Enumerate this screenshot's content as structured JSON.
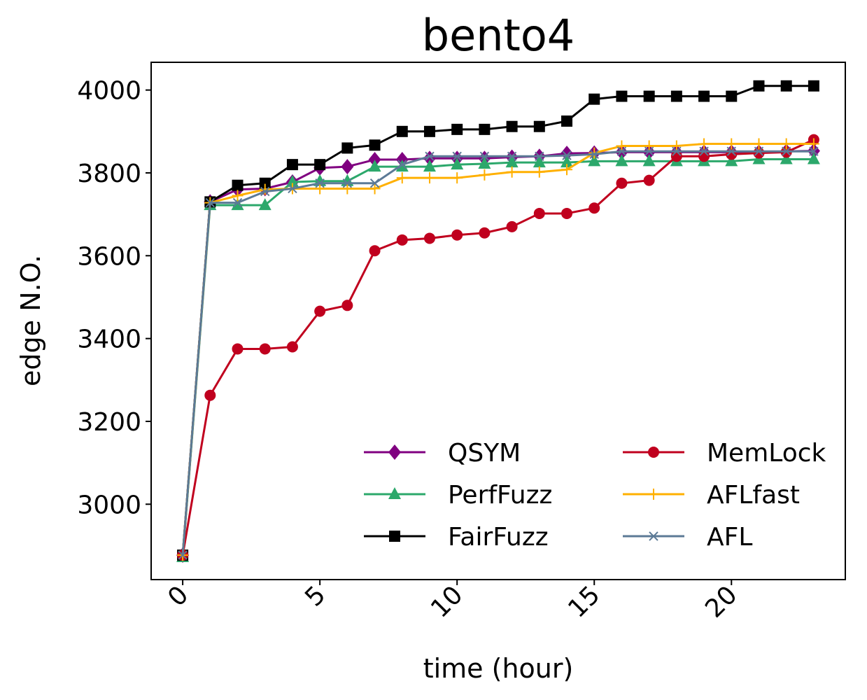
{
  "chart_data": {
    "type": "line",
    "title": "bento4",
    "xlabel": "time (hour)",
    "ylabel": "edge N.O.",
    "xlim": [
      -1.15,
      24.15
    ],
    "ylim": [
      2818,
      4067
    ],
    "xticks": [
      0,
      5,
      10,
      15,
      20
    ],
    "yticks": [
      3000,
      3200,
      3400,
      3600,
      3800,
      4000
    ],
    "grid": false,
    "legend": {
      "position": "lower-right",
      "columns": 2
    },
    "x": [
      0,
      1,
      2,
      3,
      4,
      5,
      6,
      7,
      8,
      9,
      10,
      11,
      12,
      13,
      14,
      15,
      16,
      17,
      18,
      19,
      20,
      21,
      22,
      23
    ],
    "series": [
      {
        "name": "QSYM",
        "color": "#800080",
        "marker": "diamond",
        "values": [
          2877,
          3730,
          3760,
          3762,
          3778,
          3812,
          3815,
          3832,
          3832,
          3835,
          3835,
          3835,
          3838,
          3840,
          3847,
          3848,
          3850,
          3850,
          3850,
          3850,
          3850,
          3850,
          3852,
          3853
        ]
      },
      {
        "name": "PerfFuzz",
        "color": "#2ca86b",
        "marker": "triangle",
        "values": [
          2872,
          3722,
          3722,
          3722,
          3778,
          3780,
          3780,
          3815,
          3815,
          3815,
          3820,
          3822,
          3825,
          3825,
          3825,
          3828,
          3828,
          3828,
          3828,
          3828,
          3828,
          3833,
          3833,
          3833
        ]
      },
      {
        "name": "FairFuzz",
        "color": "#000000",
        "marker": "square",
        "values": [
          2877,
          3730,
          3770,
          3775,
          3820,
          3820,
          3860,
          3867,
          3900,
          3900,
          3905,
          3905,
          3912,
          3912,
          3925,
          3978,
          3985,
          3985,
          3985,
          3985,
          3985,
          4010,
          4010,
          4010
        ]
      },
      {
        "name": "MemLock",
        "color": "#c0001e",
        "marker": "circle",
        "values": [
          2877,
          3263,
          3375,
          3375,
          3380,
          3466,
          3480,
          3612,
          3638,
          3642,
          3650,
          3655,
          3670,
          3702,
          3702,
          3715,
          3775,
          3782,
          3840,
          3840,
          3845,
          3848,
          3850,
          3880
        ]
      },
      {
        "name": "AFLfast",
        "color": "#ffb000",
        "marker": "plus",
        "values": [
          2877,
          3728,
          3745,
          3760,
          3762,
          3762,
          3762,
          3762,
          3788,
          3788,
          3788,
          3795,
          3802,
          3802,
          3808,
          3848,
          3865,
          3865,
          3865,
          3870,
          3870,
          3870,
          3870,
          3870
        ]
      },
      {
        "name": "AFL",
        "color": "#5c7a96",
        "marker": "x",
        "values": [
          2877,
          3728,
          3728,
          3755,
          3762,
          3775,
          3775,
          3775,
          3820,
          3840,
          3840,
          3840,
          3840,
          3840,
          3842,
          3845,
          3852,
          3852,
          3852,
          3852,
          3852,
          3852,
          3852,
          3852
        ]
      }
    ]
  }
}
